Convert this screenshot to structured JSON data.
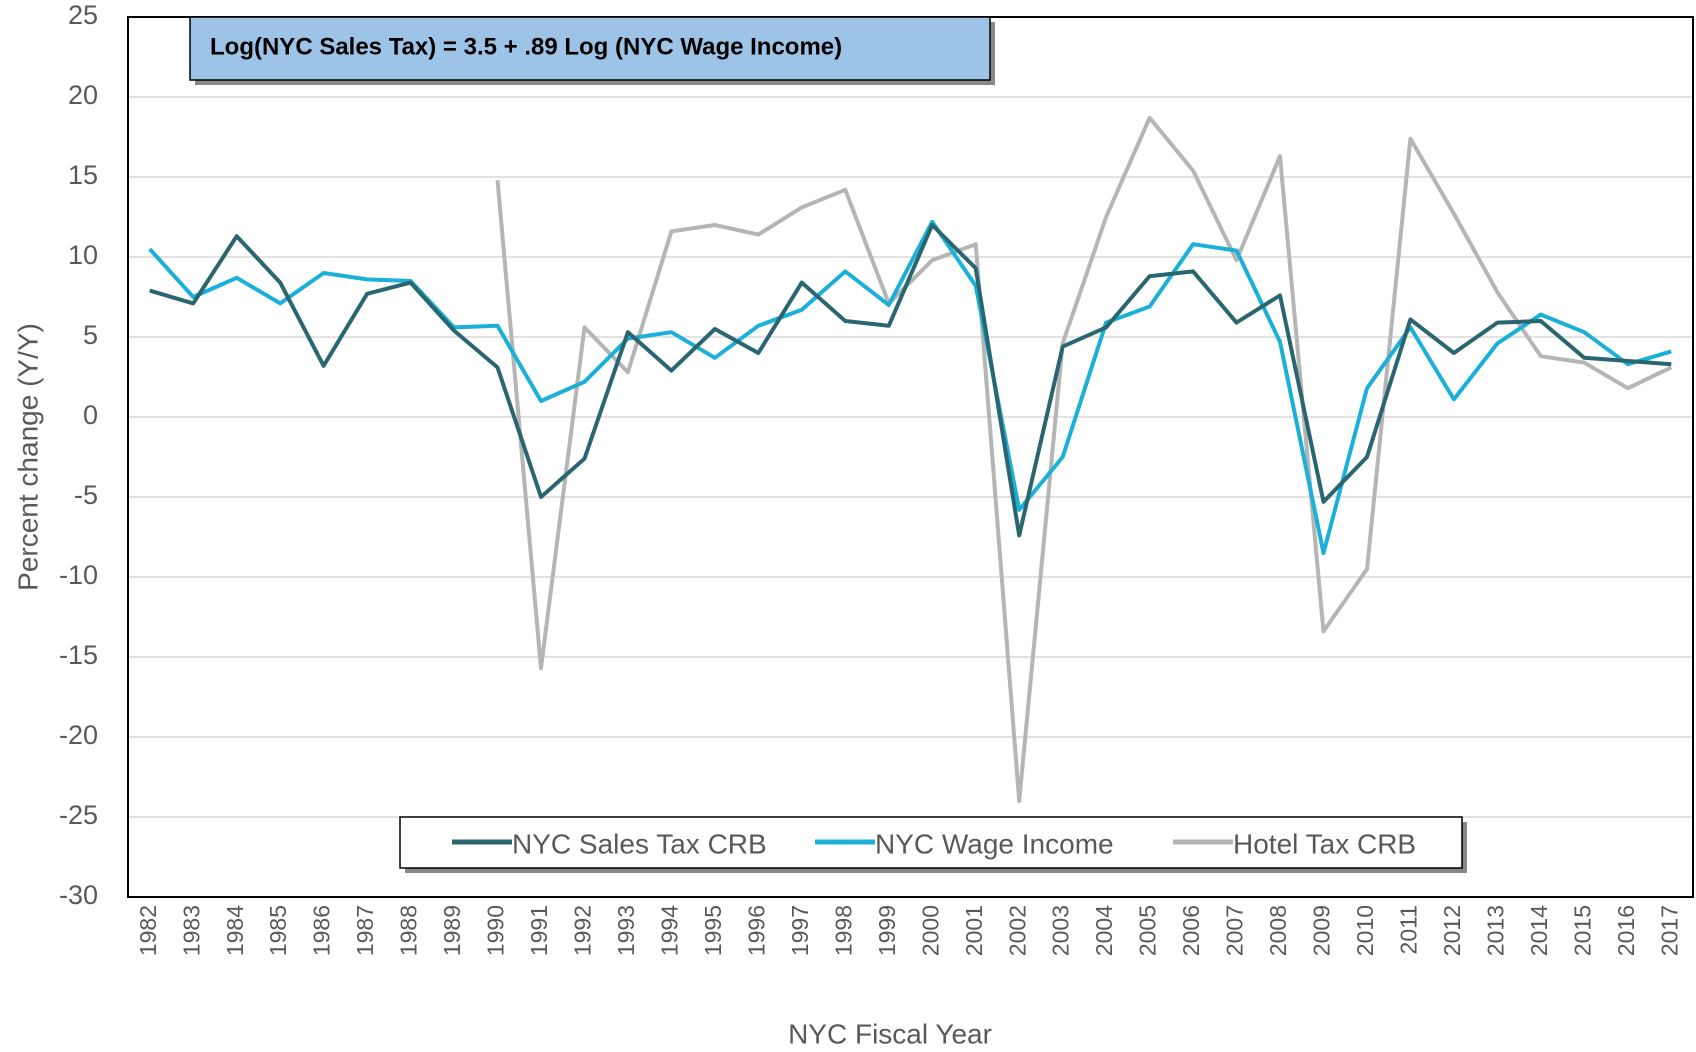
{
  "chart_data": {
    "type": "line",
    "annotation": "Log(NYC Sales Tax) =  3.5 + .89 Log (NYC Wage Income)",
    "xlabel": "NYC Fiscal Year",
    "ylabel": "Percent change (Y/Y)",
    "categories": [
      "1982",
      "1983",
      "1984",
      "1985",
      "1986",
      "1987",
      "1988",
      "1989",
      "1990",
      "1991",
      "1992",
      "1993",
      "1994",
      "1995",
      "1996",
      "1997",
      "1998",
      "1999",
      "2000",
      "2001",
      "2002",
      "2003",
      "2004",
      "2005",
      "2006",
      "2007",
      "2008",
      "2009",
      "2010",
      "2011",
      "2012",
      "2013",
      "2014",
      "2015",
      "2016",
      "2017"
    ],
    "series": [
      {
        "name": "NYC Sales Tax CRB",
        "color": "#2a6670",
        "values": [
          7.9,
          7.1,
          11.3,
          8.4,
          3.2,
          7.7,
          8.4,
          5.4,
          3.1,
          -5.0,
          -2.6,
          5.3,
          2.9,
          5.5,
          4.0,
          8.4,
          6.0,
          5.7,
          12.0,
          9.3,
          -7.4,
          4.4,
          5.6,
          8.8,
          9.1,
          5.9,
          7.6,
          -5.3,
          -2.5,
          6.1,
          4.0,
          5.9,
          6.0,
          3.7,
          3.5,
          3.3
        ]
      },
      {
        "name": "NYC Wage Income",
        "color": "#1ab0d8",
        "values": [
          10.5,
          7.5,
          8.7,
          7.1,
          9.0,
          8.6,
          8.5,
          5.6,
          5.7,
          1.0,
          2.2,
          4.9,
          5.3,
          3.7,
          5.7,
          6.7,
          9.1,
          7.0,
          12.2,
          8.2,
          -5.8,
          -2.5,
          5.9,
          6.9,
          10.8,
          10.4,
          4.7,
          -8.5,
          1.8,
          5.6,
          1.1,
          4.6,
          6.4,
          5.3,
          3.3,
          4.1
        ]
      },
      {
        "name": "Hotel Tax CRB",
        "color": "#b5b5b5",
        "values": [
          null,
          null,
          null,
          null,
          null,
          null,
          null,
          null,
          14.8,
          -15.7,
          5.6,
          2.8,
          11.6,
          12.0,
          11.4,
          13.1,
          14.2,
          7.1,
          9.8,
          10.8,
          -24.0,
          4.6,
          12.5,
          18.7,
          15.4,
          9.8,
          16.3,
          -13.4,
          -9.5,
          17.4,
          12.7,
          7.8,
          3.8,
          3.4,
          1.8,
          3.1
        ]
      }
    ],
    "ylim": [
      -30,
      25
    ],
    "yticks": [
      -30,
      -25,
      -20,
      -15,
      -10,
      -5,
      0,
      5,
      10,
      15,
      20,
      25
    ],
    "grid": true
  }
}
